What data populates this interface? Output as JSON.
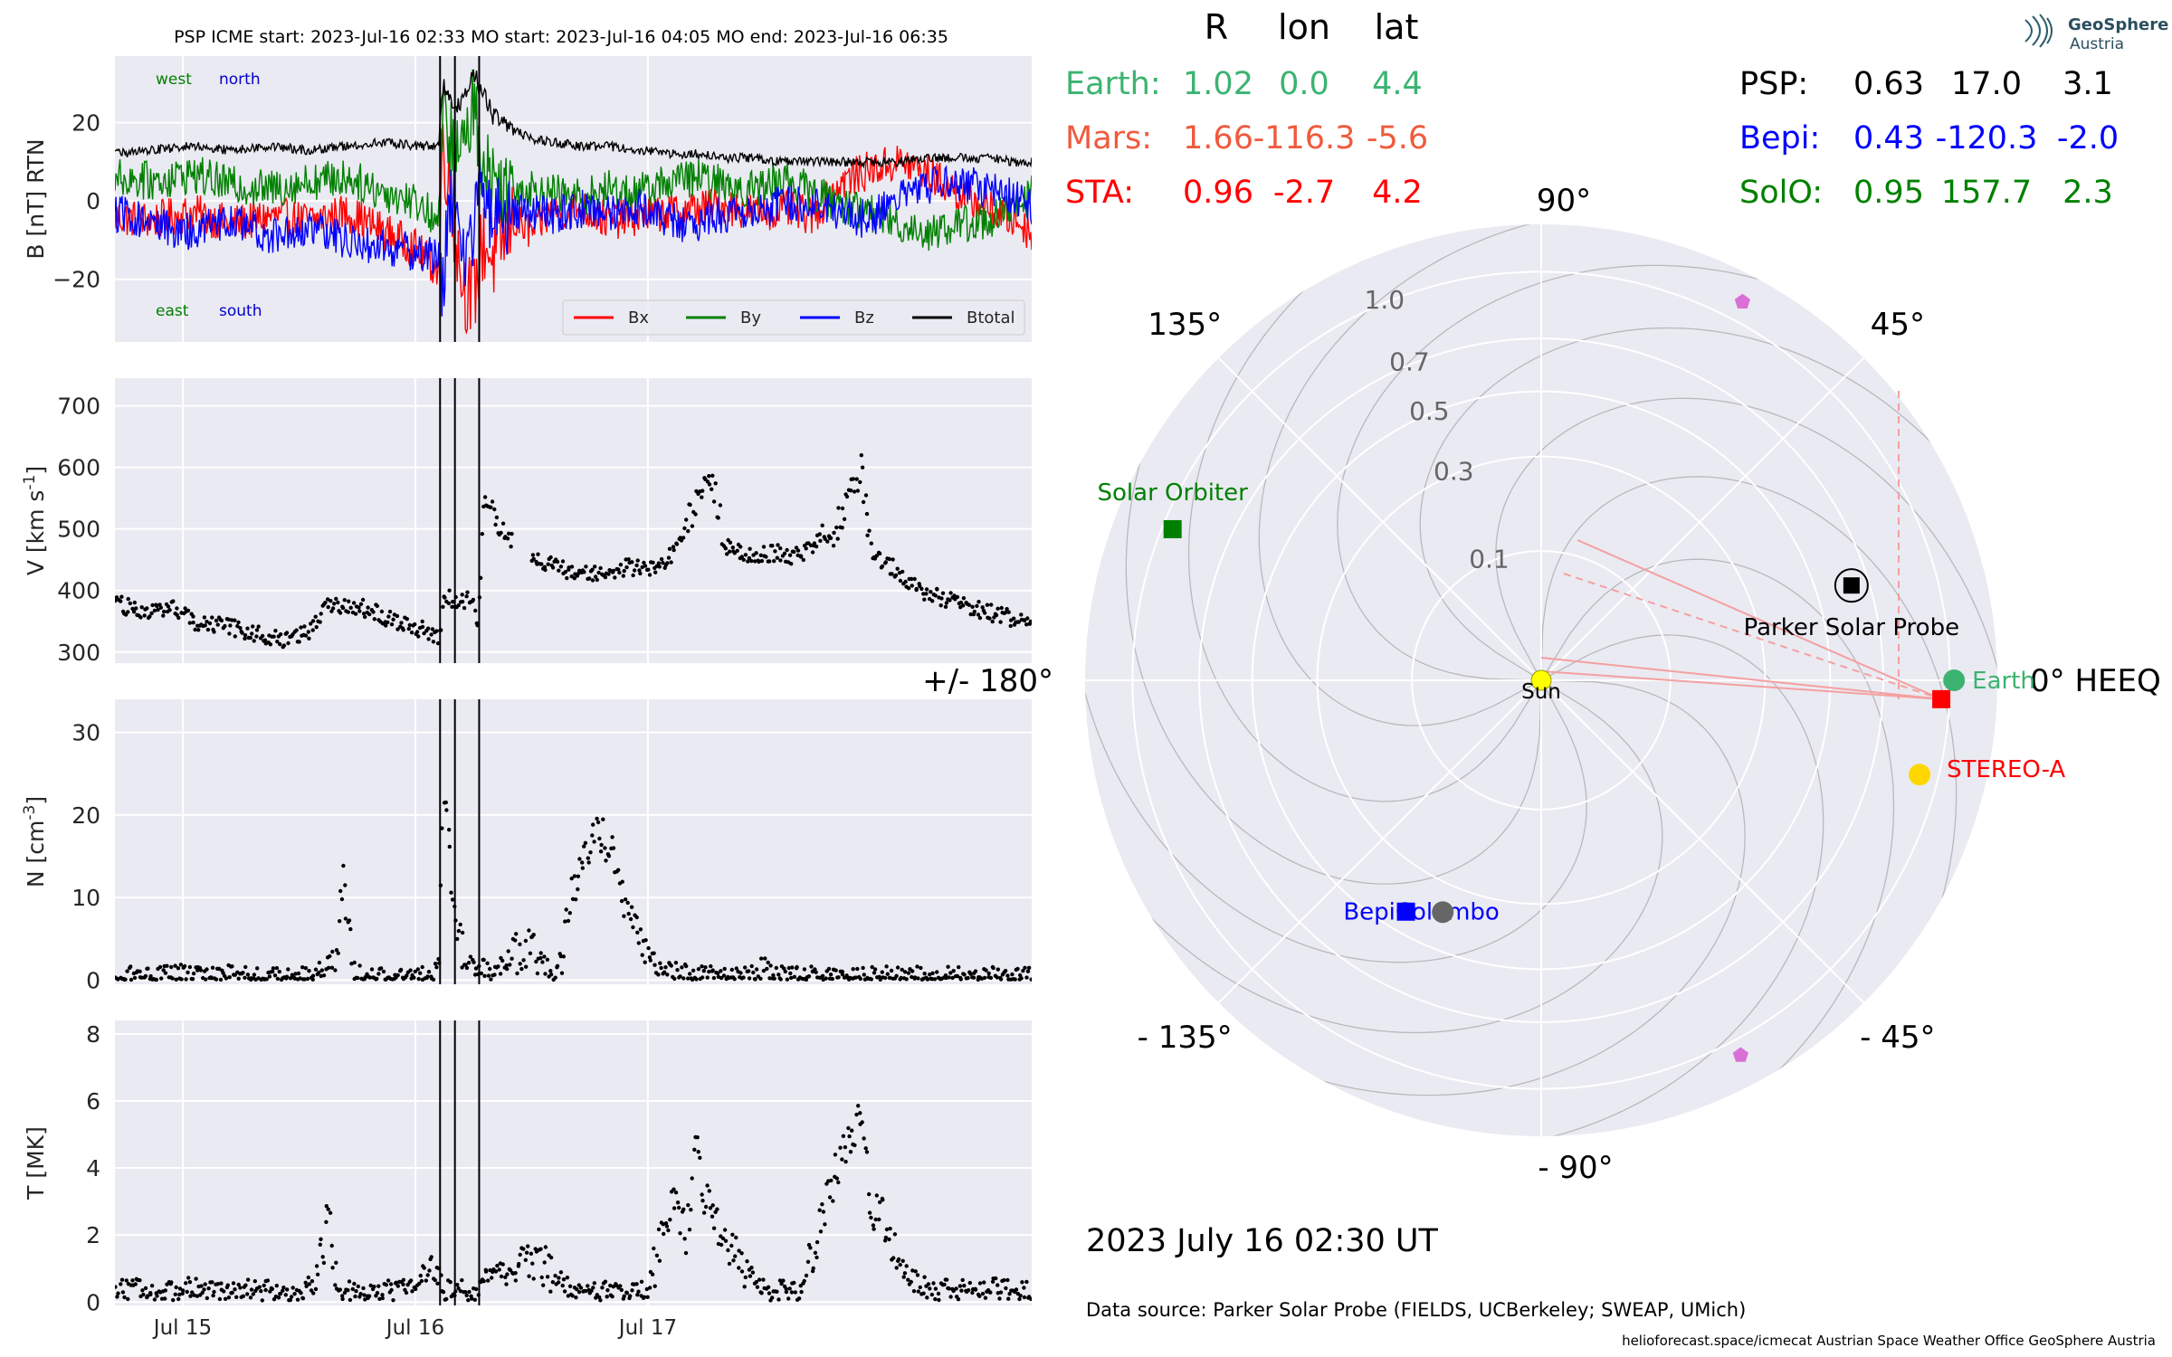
{
  "header": "PSP    ICME start: 2023-Jul-16 02:33   MO start: 2023-Jul-16 04:05   MO end: 2023-Jul-16 06:35",
  "logo": {
    "line1": "GeoSphere",
    "line2": "Austria"
  },
  "timestamp": "2023 July 16  02:30 UT",
  "data_source": "Data source: Parker Solar Probe (FIELDS, UCBerkeley; SWEAP, UMich)",
  "credits": "helioforecast.space/icmecat   Austrian Space Weather Office   GeoSphere Austria",
  "event_lines_hours_from_jul15": [
    26.55,
    28.083,
    30.583
  ],
  "x_axis": {
    "start_hours_from_jul15": -7.0,
    "end_hours_from_jul15": 87.6,
    "ticks": [
      {
        "label": "Jul 15",
        "hours": 0
      },
      {
        "label": "Jul 16",
        "hours": 24
      },
      {
        "label": "Jul 17",
        "hours": 48
      }
    ]
  },
  "position_table": {
    "headers": [
      "R",
      "lon",
      "lat"
    ],
    "left": [
      {
        "name": "Earth:",
        "r": "1.02",
        "lon": "0.0",
        "lat": "4.4",
        "color": "#3cb371"
      },
      {
        "name": "Mars:",
        "r": "1.66",
        "lon": "-116.3",
        "lat": "-5.6",
        "color": "#f05a3c"
      },
      {
        "name": "STA:",
        "r": "0.96",
        "lon": "-2.7",
        "lat": "4.2",
        "color": "#ff0000"
      }
    ],
    "right": [
      {
        "name": "PSP:",
        "r": "0.63",
        "lon": "17.0",
        "lat": "3.1",
        "color": "#000000"
      },
      {
        "name": "Bepi:",
        "r": "0.43",
        "lon": "-120.3",
        "lat": "-2.0",
        "color": "#0000ff"
      },
      {
        "name": "SolO:",
        "r": "0.95",
        "lon": "157.7",
        "lat": "2.3",
        "color": "#008000"
      }
    ]
  },
  "chart_data": [
    {
      "type": "line",
      "id": "mag",
      "ylabel": "B [nT] RTN",
      "ylim": [
        -36,
        37
      ],
      "yticks": [
        -20,
        0,
        20
      ],
      "grid": true,
      "corner_labels": {
        "west": "west",
        "north": "north",
        "east": "east",
        "south": "south"
      },
      "legend": {
        "placement": "bottom-right",
        "entries": [
          "Bx",
          "By",
          "Bz",
          "Btotal"
        ]
      },
      "series": [
        {
          "name": "Bx",
          "color": "#ff0000",
          "x": [
            -7,
            -3,
            1,
            5,
            9,
            13,
            17,
            21,
            24,
            26.4,
            26.8,
            27.5,
            28.2,
            29,
            30,
            31,
            32,
            34,
            36,
            38,
            41,
            44,
            47,
            50,
            53,
            56,
            59,
            62,
            65,
            68,
            71,
            74,
            77,
            80,
            83,
            86,
            87.6
          ],
          "y": [
            -4,
            -5,
            -3,
            -6,
            -4,
            -5,
            -3,
            -8,
            -12,
            -18,
            15,
            5,
            -10,
            -22,
            -25,
            -10,
            -15,
            -5,
            -8,
            -3,
            -2,
            -5,
            -4,
            -3,
            -2,
            -1,
            -3,
            -2,
            -4,
            5,
            8,
            10,
            7,
            2,
            -2,
            -5,
            -8
          ]
        },
        {
          "name": "By",
          "color": "#008000",
          "x": [
            -7,
            -3,
            1,
            5,
            9,
            13,
            17,
            21,
            24,
            26.4,
            26.8,
            27.5,
            28.2,
            29,
            30,
            31,
            32,
            34,
            36,
            38,
            41,
            44,
            47,
            50,
            53,
            56,
            59,
            62,
            65,
            68,
            71,
            74,
            77,
            80,
            83,
            86,
            87.6
          ],
          "y": [
            6,
            5,
            7,
            4,
            3,
            5,
            6,
            2,
            0,
            -5,
            20,
            18,
            10,
            15,
            25,
            10,
            5,
            4,
            3,
            2,
            1,
            3,
            2,
            5,
            6,
            4,
            3,
            6,
            2,
            -1,
            -3,
            -6,
            -8,
            -6,
            -5,
            -2,
            2
          ]
        },
        {
          "name": "Bz",
          "color": "#0000ff",
          "x": [
            -7,
            -3,
            1,
            5,
            9,
            13,
            17,
            21,
            24,
            26.4,
            26.8,
            27.5,
            28.2,
            29,
            30,
            31,
            32,
            34,
            36,
            38,
            41,
            44,
            47,
            50,
            53,
            56,
            59,
            62,
            65,
            68,
            71,
            74,
            77,
            80,
            83,
            86,
            87.6
          ],
          "y": [
            -3,
            -6,
            -8,
            -5,
            -9,
            -7,
            -10,
            -12,
            -13,
            -14,
            -24,
            -2,
            5,
            -15,
            -5,
            3,
            -5,
            -2,
            -3,
            -4,
            -2,
            -3,
            -1,
            -5,
            -6,
            -3,
            -2,
            -1,
            0,
            -3,
            -5,
            2,
            4,
            5,
            3,
            1,
            -2
          ]
        },
        {
          "name": "Btotal",
          "color": "#000000",
          "x": [
            -7,
            -3,
            1,
            5,
            9,
            13,
            17,
            21,
            24,
            26.4,
            26.8,
            27.5,
            28.2,
            29,
            30,
            31,
            32,
            34,
            36,
            38,
            41,
            44,
            47,
            50,
            53,
            56,
            59,
            62,
            65,
            68,
            71,
            74,
            77,
            80,
            83,
            86,
            87.6
          ],
          "y": [
            12,
            13,
            14,
            13,
            14,
            13,
            14,
            15,
            14,
            14,
            30,
            27,
            24,
            26,
            32,
            28,
            22,
            18,
            16,
            15,
            14,
            14,
            13,
            12,
            12,
            11,
            11,
            10,
            10,
            10,
            10,
            10,
            11,
            11,
            11,
            10,
            10
          ]
        }
      ]
    },
    {
      "type": "scatter",
      "id": "speed",
      "ylabel": "V [km s^-1]",
      "ylim": [
        282,
        745
      ],
      "yticks": [
        300,
        400,
        500,
        600,
        700
      ],
      "grid": true,
      "series": [
        {
          "name": "",
          "color": "#000000",
          "x": [
            -7,
            -5,
            -3,
            -1,
            1,
            3,
            5,
            7,
            9,
            11,
            13,
            15,
            17,
            19,
            21,
            23,
            25,
            26.5,
            27,
            28,
            29,
            30,
            30.5,
            31,
            32,
            33,
            34,
            35,
            36,
            38,
            40,
            42,
            44,
            46,
            48,
            50,
            51,
            52,
            53,
            54,
            55,
            56,
            58,
            60,
            62,
            63,
            64,
            65,
            66,
            67,
            68,
            69,
            70,
            71,
            72,
            74,
            76,
            78,
            80,
            82,
            84,
            86,
            87.6
          ],
          "y": [
            380,
            370,
            365,
            375,
            350,
            345,
            340,
            330,
            325,
            320,
            335,
            380,
            375,
            370,
            355,
            345,
            335,
            320,
            400,
            380,
            385,
            390,
            330,
            520,
            540,
            500,
            480,
            470,
            460,
            440,
            430,
            425,
            430,
            440,
            430,
            450,
            470,
            520,
            540,
            600,
            560,
            470,
            460,
            460,
            460,
            455,
            460,
            470,
            500,
            480,
            520,
            560,
            600,
            470,
            450,
            430,
            400,
            390,
            380,
            370,
            360,
            355,
            360
          ]
        }
      ]
    },
    {
      "type": "scatter",
      "id": "density",
      "ylabel": "N [cm^-3]",
      "ylim": [
        -0.5,
        34
      ],
      "yticks": [
        0,
        10,
        20,
        30
      ],
      "grid": true,
      "series": [
        {
          "name": "",
          "color": "#000000",
          "x": [
            -7,
            -5,
            -3,
            -1,
            1,
            3,
            5,
            7,
            9,
            11,
            13,
            15,
            16,
            16.5,
            17,
            17.5,
            18,
            20,
            22,
            24,
            26,
            26.5,
            26.8,
            27.2,
            27.6,
            28,
            28.5,
            29,
            30,
            31,
            32,
            33,
            34,
            36,
            38,
            39,
            40,
            41,
            42,
            43,
            44,
            45,
            46,
            47,
            48,
            50,
            52,
            54,
            56,
            58,
            60,
            62,
            64,
            66,
            68,
            70,
            72,
            74,
            76,
            78,
            80,
            82,
            84,
            86,
            87.6
          ],
          "y": [
            0.5,
            0.6,
            0.4,
            0.5,
            0.7,
            0.5,
            0.6,
            0.4,
            0.5,
            0.4,
            0.5,
            1.5,
            4,
            12,
            8,
            2,
            0.6,
            0.5,
            0.4,
            0.5,
            0.6,
            2,
            24,
            20,
            14,
            8,
            5,
            3,
            1,
            1.5,
            1,
            2,
            3,
            4,
            1,
            2,
            10,
            14,
            17,
            18,
            16,
            12,
            8,
            5,
            3,
            1,
            0.6,
            0.5,
            0.4,
            0.3,
            1.5,
            0.5,
            0.4,
            0.3,
            0.4,
            0.3,
            0.4,
            0.3,
            0.4,
            0.3,
            0.4,
            0.3,
            0.4,
            0.3,
            0.3
          ]
        }
      ]
    },
    {
      "type": "scatter",
      "id": "temperature",
      "ylabel": "T [MK]",
      "ylim": [
        -0.1,
        8.4
      ],
      "yticks": [
        0,
        2,
        4,
        6,
        8
      ],
      "grid": true,
      "series": [
        {
          "name": "",
          "color": "#000000",
          "x": [
            -7,
            -5,
            -3,
            -1,
            1,
            3,
            5,
            7,
            9,
            11,
            13,
            14,
            15,
            15.5,
            16,
            17,
            19,
            21,
            23,
            25,
            26,
            26.5,
            27,
            28,
            29,
            30,
            31,
            32,
            33,
            34,
            35,
            36,
            38,
            40,
            42,
            44,
            46,
            48,
            49,
            50,
            51,
            52,
            53,
            54,
            56,
            58,
            60,
            62,
            63,
            64,
            65,
            66,
            67,
            68,
            69,
            70,
            71,
            72,
            73,
            74,
            76,
            78,
            80,
            82,
            84,
            86,
            87.6
          ],
          "y": [
            0.3,
            0.35,
            0.3,
            0.3,
            0.4,
            0.3,
            0.3,
            0.35,
            0.3,
            0.3,
            0.4,
            0.8,
            2.5,
            1.5,
            0.5,
            0.3,
            0.3,
            0.3,
            0.4,
            0.8,
            1.2,
            0.6,
            0.3,
            0.3,
            0.4,
            0.2,
            0.8,
            1.0,
            0.9,
            0.8,
            1.2,
            1.4,
            1.0,
            0.3,
            0.2,
            0.3,
            0.2,
            0.3,
            1.5,
            2.5,
            3,
            2,
            4.5,
            3,
            2,
            1,
            0.3,
            0.3,
            0.3,
            0.3,
            1.5,
            2.5,
            3.5,
            4.5,
            5,
            5.5,
            3,
            2.5,
            2,
            1,
            0.5,
            0.3,
            0.4,
            0.3,
            0.4,
            0.3,
            0.3
          ]
        }
      ]
    },
    {
      "type": "scatter",
      "id": "polar_positions",
      "coordinate_system": "polar, HEEQ longitude in degrees, radial distance in AU (sqrt-scaled rings)",
      "angle_labels": [
        {
          "deg": 0,
          "label": "0° HEEQ"
        },
        {
          "deg": 45,
          "label": "45°"
        },
        {
          "deg": 90,
          "label": "90°"
        },
        {
          "deg": 135,
          "label": "135°"
        },
        {
          "deg": 180,
          "label": "+/- 180°"
        },
        {
          "deg": -135,
          "label": "- 135°"
        },
        {
          "deg": -90,
          "label": "- 90°"
        },
        {
          "deg": -45,
          "label": "- 45°"
        }
      ],
      "radial_ticks": [
        {
          "r": 0.1,
          "label": "0.1"
        },
        {
          "r": 0.3,
          "label": "0.3"
        },
        {
          "r": 0.5,
          "label": "0.5"
        },
        {
          "r": 0.7,
          "label": "0.7"
        },
        {
          "r": 1.0,
          "label": "1.0"
        }
      ],
      "max_radius": 1.25,
      "bodies": [
        {
          "name": "Sun",
          "label": "Sun",
          "r": 0.0,
          "lon": 0.0,
          "color": "#ffff00",
          "marker": "circle"
        },
        {
          "name": "Earth",
          "label": "Earth",
          "r": 1.02,
          "lon": 0.0,
          "color": "#3cb371",
          "marker": "circle"
        },
        {
          "name": "STEREO-A",
          "label": "",
          "r": 0.96,
          "lon": -2.7,
          "color": "#ff0000",
          "marker": "square"
        },
        {
          "name": "STEREO-A-sun",
          "label": "STEREO-A",
          "r": 0.91,
          "lon": -14.0,
          "color": "#ffd700",
          "marker": "circle"
        },
        {
          "name": "Parker Solar Probe",
          "label": "Parker Solar Probe",
          "r": 0.63,
          "lon": 17.0,
          "color": "#000000",
          "marker": "square-ring"
        },
        {
          "name": "Solar Orbiter",
          "label": "Solar Orbiter",
          "r": 0.95,
          "lon": 157.7,
          "color": "#008000",
          "marker": "square"
        },
        {
          "name": "BepiColombo",
          "label": "BepiColombo",
          "r": 0.43,
          "lon": -120.3,
          "color": "#0000ff",
          "marker": "square"
        },
        {
          "name": "Mercury",
          "label": "",
          "r": 0.38,
          "lon": -113.0,
          "color": "#666666",
          "marker": "circle"
        },
        {
          "name": "Planet-upper",
          "label": "",
          "r": 1.1,
          "lon": 62.0,
          "color": "#da70d6",
          "marker": "pentagon"
        },
        {
          "name": "Planet-lower",
          "label": "",
          "r": 1.08,
          "lon": -62.0,
          "color": "#da70d6",
          "marker": "pentagon"
        }
      ]
    }
  ]
}
